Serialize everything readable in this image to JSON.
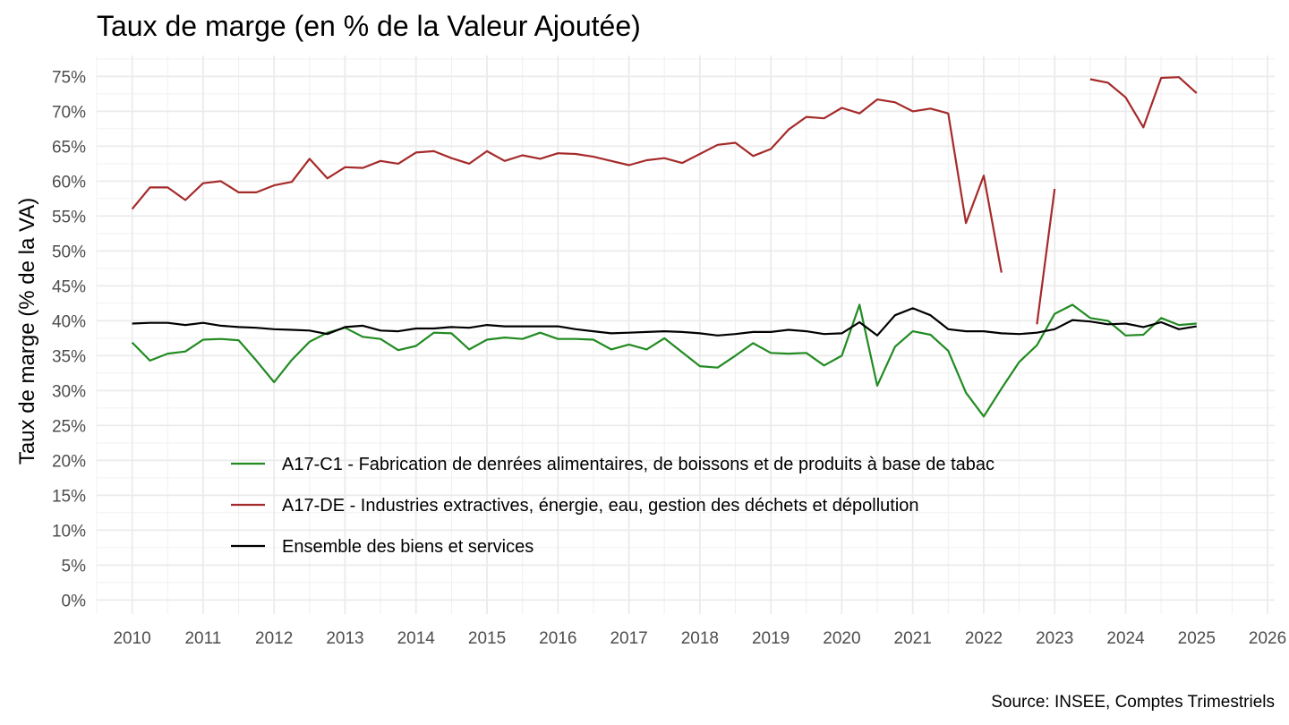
{
  "chart_data": {
    "type": "line",
    "title": "Taux de marge (en % de la Valeur Ajoutée)",
    "ylabel": "Taux de marge (% de la VA)",
    "xlabel": "",
    "caption": "Source: INSEE, Comptes Trimestriels",
    "xlim": [
      2009.5,
      2026.1
    ],
    "ylim": [
      -2,
      78
    ],
    "x_ticks": [
      2010,
      2011,
      2012,
      2013,
      2014,
      2015,
      2016,
      2017,
      2018,
      2019,
      2020,
      2021,
      2022,
      2023,
      2024,
      2025,
      2026
    ],
    "x_tick_labels": [
      "2010",
      "2011",
      "2012",
      "2013",
      "2014",
      "2015",
      "2016",
      "2017",
      "2018",
      "2019",
      "2020",
      "2021",
      "2022",
      "2023",
      "2024",
      "2025",
      "2026"
    ],
    "y_ticks": [
      0,
      5,
      10,
      15,
      20,
      25,
      30,
      35,
      40,
      45,
      50,
      55,
      60,
      65,
      70,
      75
    ],
    "y_tick_labels": [
      "0%",
      "5%",
      "10%",
      "15%",
      "20%",
      "25%",
      "30%",
      "35%",
      "40%",
      "45%",
      "50%",
      "55%",
      "60%",
      "65%",
      "70%",
      "75%"
    ],
    "grid": true,
    "legend_position": "bottom-left inside",
    "x": [
      2010,
      2010.25,
      2010.5,
      2010.75,
      2011,
      2011.25,
      2011.5,
      2011.75,
      2012,
      2012.25,
      2012.5,
      2012.75,
      2013,
      2013.25,
      2013.5,
      2013.75,
      2014,
      2014.25,
      2014.5,
      2014.75,
      2015,
      2015.25,
      2015.5,
      2015.75,
      2016,
      2016.25,
      2016.5,
      2016.75,
      2017,
      2017.25,
      2017.5,
      2017.75,
      2018,
      2018.25,
      2018.5,
      2018.75,
      2019,
      2019.25,
      2019.5,
      2019.75,
      2020,
      2020.25,
      2020.5,
      2020.75,
      2021,
      2021.25,
      2021.5,
      2021.75,
      2022,
      2022.25,
      2022.5,
      2022.75,
      2023,
      2023.25,
      2023.5,
      2023.75,
      2024,
      2024.25,
      2024.5,
      2024.75,
      2025
    ],
    "series": [
      {
        "name": "A17-C1 - Fabrication de denrées alimentaires, de boissons et de produits à base de tabac",
        "color": "#228B22",
        "values": [
          36.9,
          34.3,
          35.3,
          35.6,
          37.3,
          37.4,
          37.2,
          34.3,
          31.2,
          34.4,
          37.0,
          38.3,
          39.0,
          37.7,
          37.4,
          35.8,
          36.4,
          38.3,
          38.2,
          35.9,
          37.3,
          37.6,
          37.4,
          38.3,
          37.4,
          37.4,
          37.3,
          35.9,
          36.6,
          35.9,
          37.5,
          35.5,
          33.5,
          33.3,
          35.0,
          36.8,
          35.4,
          35.3,
          35.4,
          33.6,
          35.0,
          42.3,
          30.7,
          36.3,
          38.5,
          38.0,
          35.7,
          29.7,
          26.3,
          30.3,
          34.1,
          36.5,
          41.0,
          42.3,
          40.4,
          40.0,
          37.9,
          38.0,
          40.4,
          39.4,
          39.6
        ]
      },
      {
        "name": "A17-DE - Industries extractives, énergie, eau, gestion des déchets et dépollution",
        "color": "#A52A2A",
        "values": [
          56.0,
          59.1,
          59.1,
          57.3,
          59.7,
          60.0,
          58.4,
          58.4,
          59.4,
          59.9,
          63.2,
          60.4,
          62.0,
          61.9,
          62.9,
          62.5,
          64.1,
          64.3,
          63.3,
          62.5,
          64.3,
          62.9,
          63.7,
          63.2,
          64.0,
          63.9,
          63.5,
          62.9,
          62.3,
          63.0,
          63.3,
          62.6,
          63.9,
          65.2,
          65.5,
          63.6,
          64.6,
          67.4,
          69.2,
          69.0,
          70.5,
          69.7,
          71.7,
          71.3,
          70.0,
          70.4,
          69.7,
          54.0,
          60.8,
          46.9,
          null,
          39.5,
          58.9,
          null,
          74.6,
          74.1,
          72.0,
          67.7,
          74.8,
          74.9,
          72.6
        ]
      },
      {
        "name": "Ensemble des biens et services",
        "color": "#000000",
        "values": [
          39.6,
          39.7,
          39.7,
          39.4,
          39.7,
          39.3,
          39.1,
          39.0,
          38.8,
          38.7,
          38.6,
          38.1,
          39.1,
          39.3,
          38.6,
          38.5,
          38.9,
          38.9,
          39.1,
          39.0,
          39.4,
          39.2,
          39.2,
          39.2,
          39.2,
          38.8,
          38.5,
          38.2,
          38.3,
          38.4,
          38.5,
          38.4,
          38.2,
          37.9,
          38.1,
          38.4,
          38.4,
          38.7,
          38.5,
          38.1,
          38.2,
          39.8,
          37.9,
          40.8,
          41.8,
          40.8,
          38.8,
          38.5,
          38.5,
          38.2,
          38.1,
          38.3,
          38.8,
          40.1,
          39.9,
          39.5,
          39.6,
          39.1,
          39.8,
          38.8,
          39.2
        ]
      }
    ]
  }
}
